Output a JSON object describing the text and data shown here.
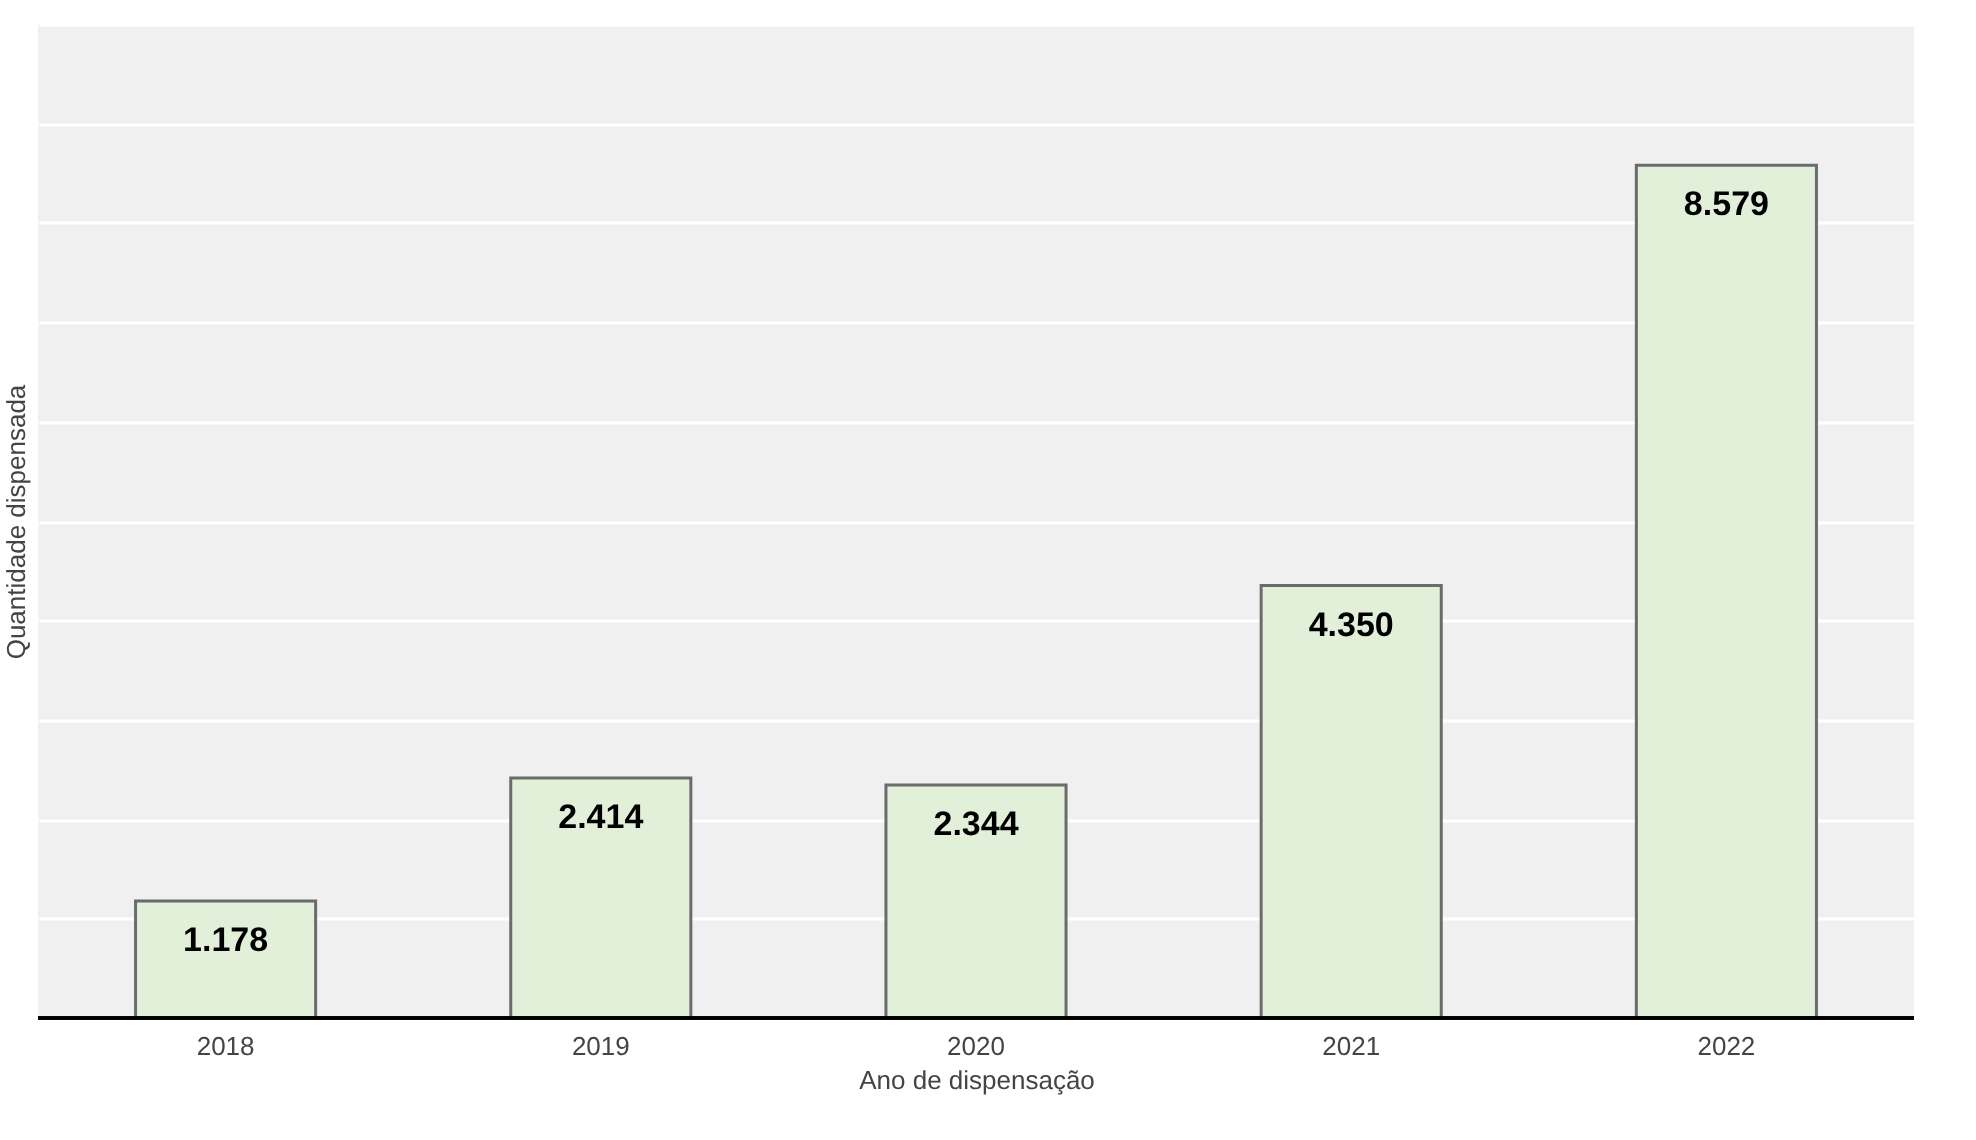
{
  "chart_data": {
    "type": "bar",
    "xlabel": "Ano de dispensação",
    "ylabel": "Quantidade dispensada",
    "categories": [
      "2018",
      "2019",
      "2020",
      "2021",
      "2022"
    ],
    "values": [
      1178,
      2414,
      2344,
      4350,
      8579
    ],
    "value_labels": [
      "1.178",
      "2.414",
      "2.344",
      "4.350",
      "8.579"
    ],
    "color": "#e2efd9",
    "ylim": [
      0,
      10000
    ],
    "yticks": [
      {
        "value": 0,
        "label": null
      },
      {
        "value": 1000,
        "label": null
      },
      {
        "value": 2000,
        "label": null
      },
      {
        "value": 3000,
        "label": null
      },
      {
        "value": 4000,
        "label": null
      },
      {
        "value": 5000,
        "label": null
      },
      {
        "value": 6000,
        "label": null
      },
      {
        "value": 7000,
        "label": null
      },
      {
        "value": 8000,
        "label": null
      },
      {
        "value": 9000,
        "label": null
      },
      {
        "value": 10000,
        "label": null
      }
    ],
    "tick_labels": "x",
    "grid": "y"
  }
}
